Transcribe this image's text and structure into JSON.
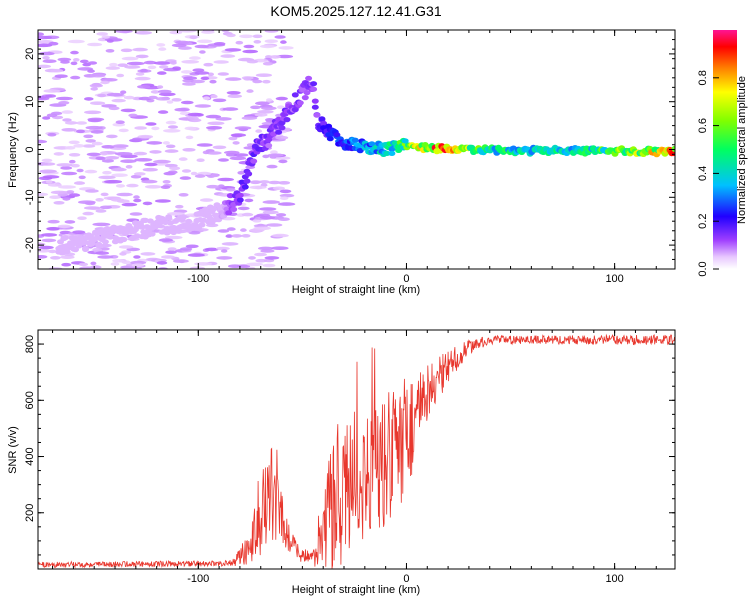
{
  "chart_data": [
    {
      "type": "heatmap",
      "title": "KOM5.2025.127.12.41.G31",
      "xlabel": "Height of straight line (km)",
      "ylabel": "Frequency (Hz)",
      "xlim": [
        -177,
        129
      ],
      "ylim": [
        -25,
        25
      ],
      "xticks": [
        "-100",
        "0",
        "100"
      ],
      "yticks": [
        "-20",
        "-10",
        "0",
        "10",
        "20"
      ],
      "colorbar": {
        "label": "Normalized spectral amplitude",
        "range": [
          0,
          1
        ],
        "ticks": [
          "0.0",
          "0.2",
          "0.4",
          "0.6",
          "0.8"
        ]
      },
      "ridge": [
        {
          "x": -165,
          "y": -20
        },
        {
          "x": -140,
          "y": -18
        },
        {
          "x": -120,
          "y": -16
        },
        {
          "x": -100,
          "y": -15
        },
        {
          "x": -90,
          "y": -13
        },
        {
          "x": -80,
          "y": -10
        },
        {
          "x": -76,
          "y": -4
        },
        {
          "x": -72,
          "y": 0
        },
        {
          "x": -65,
          "y": 3
        },
        {
          "x": -60,
          "y": 6
        },
        {
          "x": -55,
          "y": 9
        },
        {
          "x": -50,
          "y": 12
        },
        {
          "x": -45,
          "y": 14
        },
        {
          "x": -42,
          "y": 5
        },
        {
          "x": -35,
          "y": 3
        },
        {
          "x": -30,
          "y": 1.5
        },
        {
          "x": -20,
          "y": 0.5
        },
        {
          "x": -10,
          "y": 0
        },
        {
          "x": 0,
          "y": 1
        },
        {
          "x": 10,
          "y": 0.3
        },
        {
          "x": 40,
          "y": -0.2
        },
        {
          "x": 80,
          "y": -0.3
        },
        {
          "x": 129,
          "y": -0.4
        }
      ],
      "amplitude_profile": [
        {
          "x": -177,
          "a": 0.02
        },
        {
          "x": -90,
          "a": 0.05
        },
        {
          "x": -80,
          "a": 0.18
        },
        {
          "x": -65,
          "a": 0.15
        },
        {
          "x": -45,
          "a": 0.15
        },
        {
          "x": -30,
          "a": 0.3
        },
        {
          "x": -15,
          "a": 0.4
        },
        {
          "x": 0,
          "a": 0.6
        },
        {
          "x": 10,
          "a": 0.85
        },
        {
          "x": 20,
          "a": 0.9
        },
        {
          "x": 40,
          "a": 0.5
        },
        {
          "x": 80,
          "a": 0.45
        },
        {
          "x": 129,
          "a": 0.85
        }
      ]
    },
    {
      "type": "line",
      "title": "",
      "xlabel": "Height of straight line (km)",
      "ylabel": "SNR (v/v)",
      "xlim": [
        -177,
        129
      ],
      "ylim": [
        0,
        850
      ],
      "xticks": [
        "-100",
        "0",
        "100"
      ],
      "yticks": [
        "200",
        "400",
        "600",
        "800"
      ],
      "series_color": "#e8362c",
      "envelope": [
        {
          "x": -177,
          "base": 15,
          "amp": 10
        },
        {
          "x": -85,
          "base": 20,
          "amp": 10
        },
        {
          "x": -75,
          "base": 70,
          "amp": 60
        },
        {
          "x": -70,
          "base": 200,
          "amp": 180
        },
        {
          "x": -65,
          "base": 270,
          "amp": 170
        },
        {
          "x": -60,
          "base": 180,
          "amp": 100
        },
        {
          "x": -55,
          "base": 90,
          "amp": 40
        },
        {
          "x": -50,
          "base": 45,
          "amp": 25
        },
        {
          "x": -45,
          "base": 40,
          "amp": 30
        },
        {
          "x": -40,
          "base": 110,
          "amp": 110
        },
        {
          "x": -35,
          "base": 250,
          "amp": 300
        },
        {
          "x": -30,
          "base": 280,
          "amp": 250
        },
        {
          "x": -20,
          "base": 320,
          "amp": 220
        },
        {
          "x": -10,
          "base": 380,
          "amp": 250
        },
        {
          "x": 0,
          "base": 480,
          "amp": 220
        },
        {
          "x": 10,
          "base": 600,
          "amp": 130
        },
        {
          "x": 20,
          "base": 720,
          "amp": 60
        },
        {
          "x": 30,
          "base": 790,
          "amp": 25
        },
        {
          "x": 40,
          "base": 815,
          "amp": 15
        },
        {
          "x": 129,
          "base": 815,
          "amp": 18
        }
      ]
    }
  ]
}
